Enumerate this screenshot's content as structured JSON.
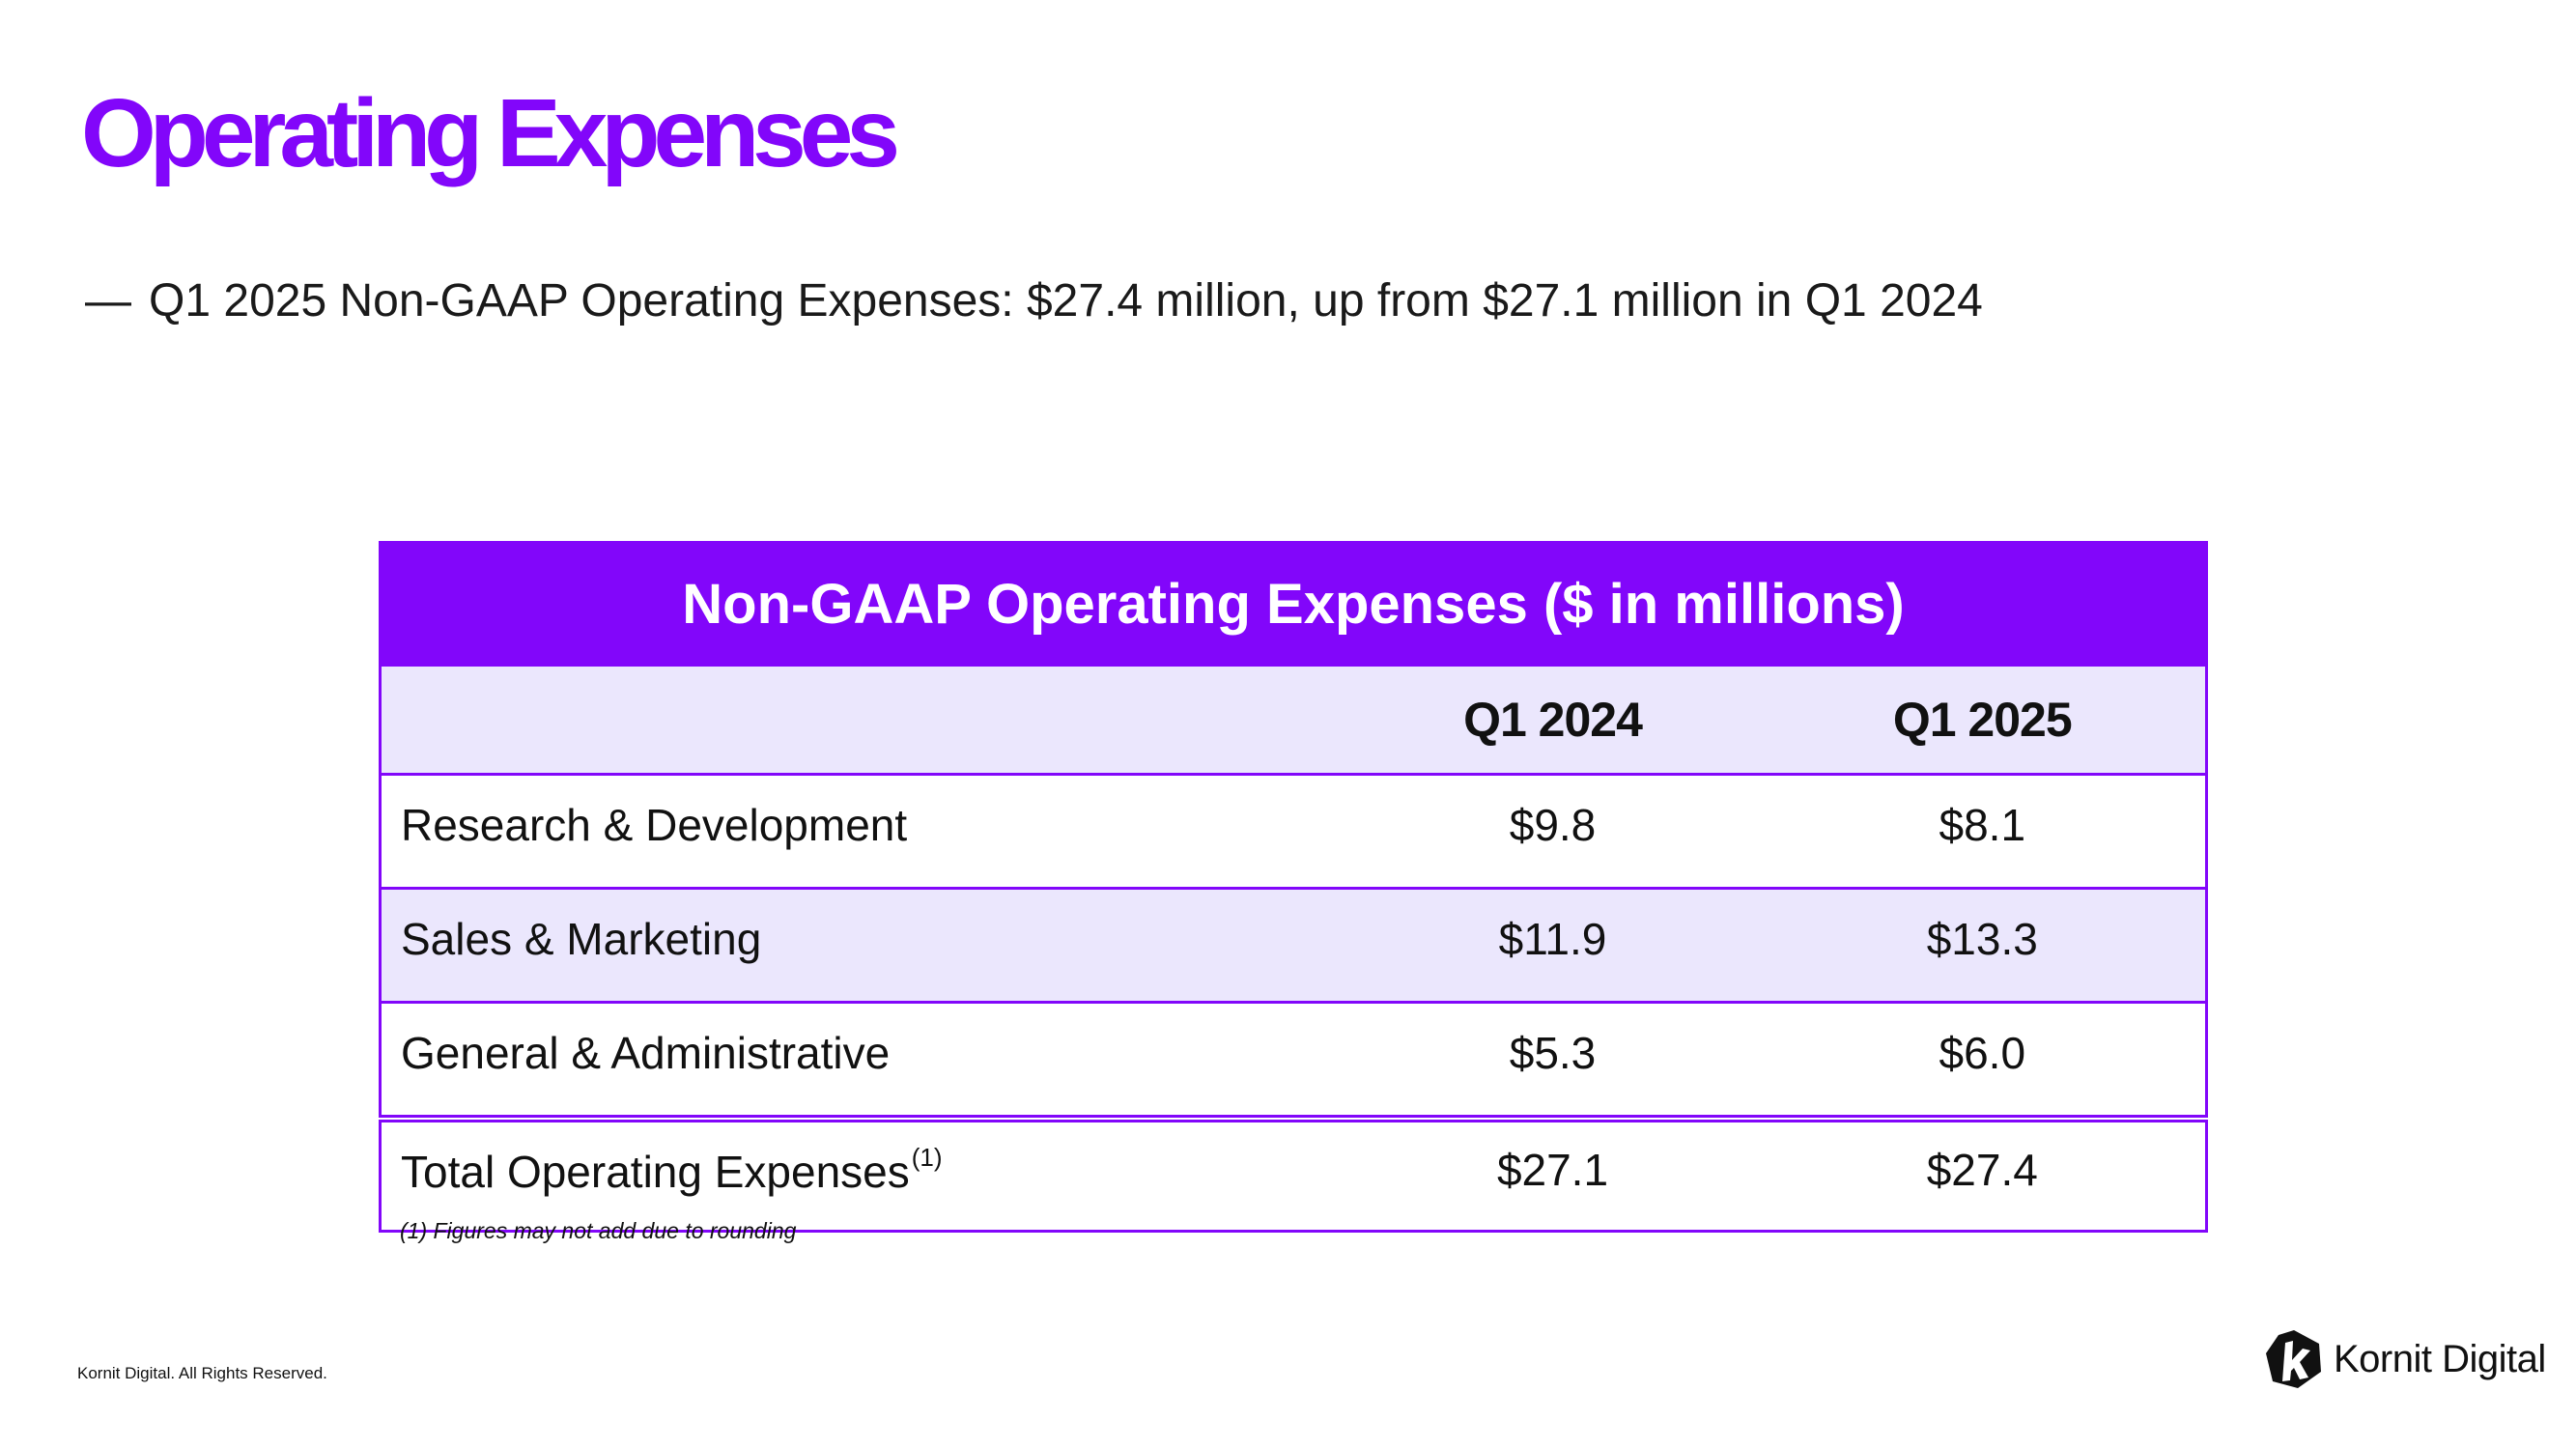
{
  "slide": {
    "title": "Operating Expenses",
    "bullet_dash": "—",
    "bullet_text": "Q1 2025 Non-GAAP Operating Expenses: $27.4 million, up from $27.1 million in Q1 2024"
  },
  "table": {
    "caption": "Non-GAAP Operating Expenses ($ in millions)",
    "columns": [
      "",
      "Q1 2024",
      "Q1 2025"
    ],
    "rows": [
      {
        "label": "Research & Development",
        "q1_2024": "$9.8",
        "q1_2025": "$8.1"
      },
      {
        "label": "Sales & Marketing",
        "q1_2024": "$11.9",
        "q1_2025": "$13.3"
      },
      {
        "label": "General & Administrative",
        "q1_2024": "$5.3",
        "q1_2025": "$6.0"
      }
    ],
    "total": {
      "label": "Total Operating Expenses",
      "footnote_marker": "(1)",
      "q1_2024": "$27.1",
      "q1_2025": "$27.4"
    }
  },
  "footnote": "(1) Figures may not add due to rounding",
  "footer": {
    "copyright": "Kornit Digital. All Rights Reserved.",
    "brand_name": "Kornit Digital",
    "brand_icon": "kornit-k-logo-icon"
  },
  "colors": {
    "brand_purple": "#8206fa",
    "row_shade": "#ebe7fd"
  }
}
